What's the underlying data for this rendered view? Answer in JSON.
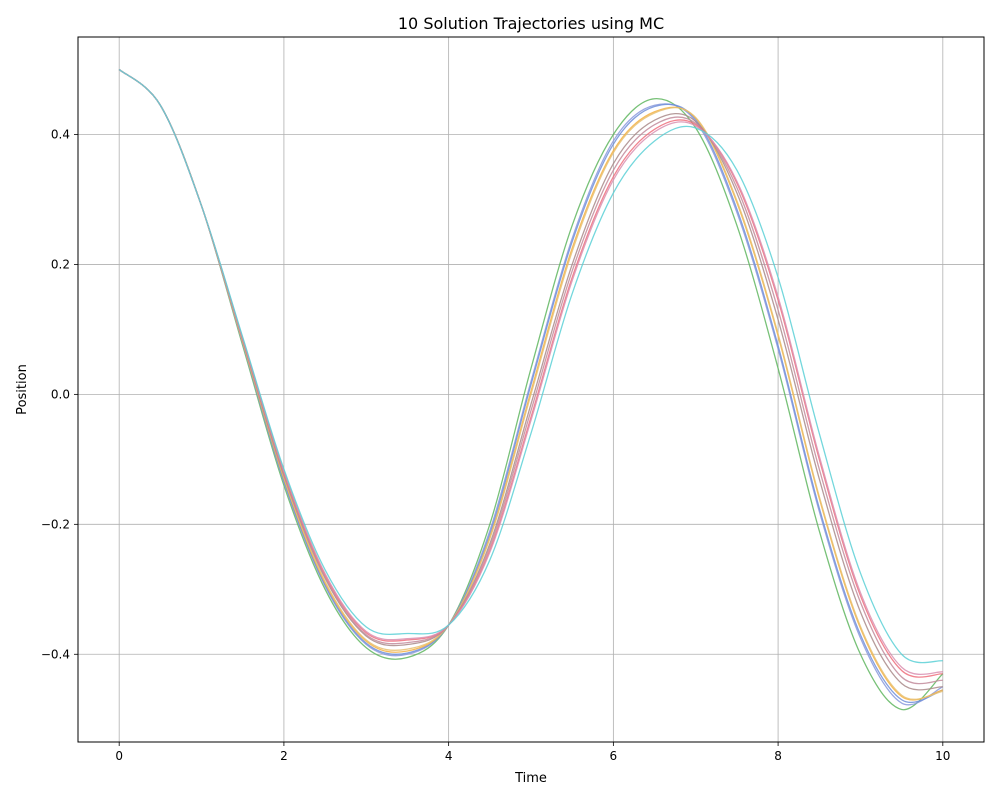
{
  "chart_data": {
    "type": "line",
    "title": "10 Solution Trajectories using MC",
    "xlabel": "Time",
    "ylabel": "Position",
    "xlim": [
      -0.5,
      10.5
    ],
    "ylim": [
      -0.535,
      0.55
    ],
    "x_ticks": [
      0,
      2,
      4,
      6,
      8,
      10
    ],
    "x_tick_labels": [
      "0",
      "2",
      "4",
      "6",
      "8",
      "10"
    ],
    "y_ticks": [
      -0.4,
      -0.2,
      0.0,
      0.2,
      0.4
    ],
    "y_tick_labels": [
      "−0.4",
      "−0.2",
      "0.0",
      "0.2",
      "0.4"
    ],
    "grid": true,
    "legend": "none",
    "x": [
      0,
      0.5,
      1,
      1.5,
      2,
      2.5,
      3,
      3.5,
      4,
      4.5,
      5,
      5.5,
      6,
      6.5,
      7,
      7.5,
      8,
      8.5,
      9,
      9.5,
      10
    ],
    "series": [
      {
        "color": "#5fb65f",
        "values": [
          0.5,
          0.445,
          0.29,
          0.075,
          -0.14,
          -0.3,
          -0.39,
          -0.405,
          -0.355,
          -0.2,
          0.04,
          0.26,
          0.4,
          0.455,
          0.41,
          0.26,
          0.04,
          -0.21,
          -0.4,
          -0.485,
          -0.43
        ]
      },
      {
        "color": "#8899dd",
        "values": [
          0.5,
          0.445,
          0.29,
          0.078,
          -0.135,
          -0.295,
          -0.385,
          -0.4,
          -0.355,
          -0.21,
          0.02,
          0.24,
          0.39,
          0.445,
          0.42,
          0.28,
          0.07,
          -0.18,
          -0.375,
          -0.475,
          -0.45
        ]
      },
      {
        "color": "#6e8ed9",
        "values": [
          0.5,
          0.445,
          0.29,
          0.079,
          -0.133,
          -0.293,
          -0.383,
          -0.398,
          -0.355,
          -0.215,
          0.015,
          0.235,
          0.385,
          0.443,
          0.423,
          0.285,
          0.075,
          -0.175,
          -0.37,
          -0.47,
          -0.455
        ]
      },
      {
        "color": "#f5b041",
        "values": [
          0.5,
          0.445,
          0.29,
          0.08,
          -0.13,
          -0.29,
          -0.38,
          -0.395,
          -0.355,
          -0.22,
          0.005,
          0.225,
          0.375,
          0.435,
          0.425,
          0.295,
          0.09,
          -0.16,
          -0.36,
          -0.465,
          -0.455
        ]
      },
      {
        "color": "#e8c070",
        "values": [
          0.5,
          0.445,
          0.29,
          0.081,
          -0.128,
          -0.288,
          -0.378,
          -0.392,
          -0.355,
          -0.222,
          0.0,
          0.22,
          0.372,
          0.433,
          0.426,
          0.298,
          0.093,
          -0.157,
          -0.357,
          -0.463,
          -0.457
        ]
      },
      {
        "color": "#a98a8a",
        "values": [
          0.5,
          0.445,
          0.29,
          0.083,
          -0.125,
          -0.283,
          -0.372,
          -0.385,
          -0.355,
          -0.23,
          -0.015,
          0.2,
          0.355,
          0.422,
          0.42,
          0.31,
          0.115,
          -0.13,
          -0.335,
          -0.445,
          -0.45
        ]
      },
      {
        "color": "#c28b9b",
        "values": [
          0.5,
          0.445,
          0.29,
          0.084,
          -0.123,
          -0.281,
          -0.37,
          -0.382,
          -0.355,
          -0.235,
          -0.025,
          0.19,
          0.345,
          0.415,
          0.417,
          0.318,
          0.13,
          -0.115,
          -0.32,
          -0.435,
          -0.44
        ]
      },
      {
        "color": "#ef6f7c",
        "values": [
          0.5,
          0.445,
          0.29,
          0.085,
          -0.12,
          -0.278,
          -0.367,
          -0.378,
          -0.355,
          -0.24,
          -0.035,
          0.18,
          0.335,
          0.408,
          0.415,
          0.325,
          0.145,
          -0.1,
          -0.31,
          -0.425,
          -0.43
        ]
      },
      {
        "color": "#d98fb0",
        "values": [
          0.5,
          0.445,
          0.29,
          0.086,
          -0.118,
          -0.276,
          -0.365,
          -0.376,
          -0.355,
          -0.243,
          -0.04,
          0.175,
          0.33,
          0.404,
          0.413,
          0.328,
          0.15,
          -0.095,
          -0.305,
          -0.42,
          -0.427
        ]
      },
      {
        "color": "#5bd0d6",
        "values": [
          0.5,
          0.445,
          0.29,
          0.088,
          -0.115,
          -0.27,
          -0.358,
          -0.368,
          -0.355,
          -0.255,
          -0.06,
          0.155,
          0.31,
          0.39,
          0.41,
          0.345,
          0.18,
          -0.06,
          -0.275,
          -0.4,
          -0.41
        ]
      }
    ]
  }
}
